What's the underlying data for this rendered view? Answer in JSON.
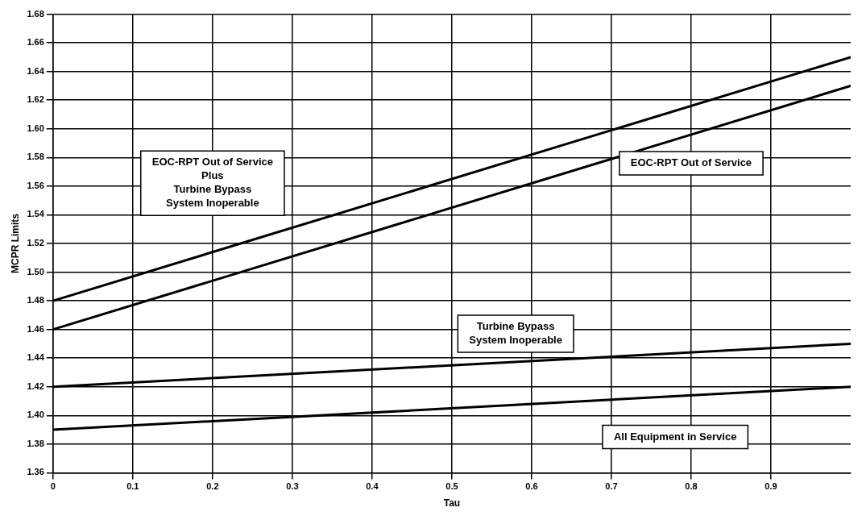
{
  "chart_data": {
    "type": "line",
    "xlabel": "Tau",
    "ylabel": "MCPR Limits",
    "x": [
      0,
      1
    ],
    "series": [
      {
        "name": "EOC-RPT Out of Service\nPlus\nTurbine Bypass\nSystem Inoperable",
        "color": "#000000",
        "values": [
          1.48,
          1.65
        ]
      },
      {
        "name": "EOC-RPT Out of Service",
        "color": "#000000",
        "values": [
          1.46,
          1.63
        ]
      },
      {
        "name": "Turbine Bypass\nSystem Inoperable",
        "color": "#000000",
        "values": [
          1.42,
          1.45
        ]
      },
      {
        "name": "All Equipment in Service",
        "color": "#000000",
        "values": [
          1.39,
          1.42
        ]
      }
    ],
    "xlim": [
      0,
      1
    ],
    "xticks": [
      0,
      0.1,
      0.2,
      0.3,
      0.4,
      0.5,
      0.6,
      0.7,
      0.8,
      0.9
    ],
    "ylim": [
      1.36,
      1.68
    ],
    "yticks": [
      {
        "value": 1.36,
        "label": "1.36"
      },
      {
        "value": 1.38,
        "label": "1.38"
      },
      {
        "value": 1.4,
        "label": "1.40"
      },
      {
        "value": 1.42,
        "label": "1.42"
      },
      {
        "value": 1.44,
        "label": "1.44"
      },
      {
        "value": 1.46,
        "label": "1.46"
      },
      {
        "value": 1.48,
        "label": "1.48"
      },
      {
        "value": 1.5,
        "label": "1.50"
      },
      {
        "value": 1.52,
        "label": "1.52"
      },
      {
        "value": 1.54,
        "label": "1.54"
      },
      {
        "value": 1.56,
        "label": "1.56"
      },
      {
        "value": 1.58,
        "label": "1.58"
      },
      {
        "value": 1.6,
        "label": "1.60"
      },
      {
        "value": 1.62,
        "label": "1.62"
      },
      {
        "value": 1.64,
        "label": "1.64"
      },
      {
        "value": 1.66,
        "label": "1.66"
      },
      {
        "value": 1.68,
        "label": "1.68"
      }
    ],
    "grid": true,
    "legend": false,
    "marker": "none",
    "line_style": "solid"
  }
}
